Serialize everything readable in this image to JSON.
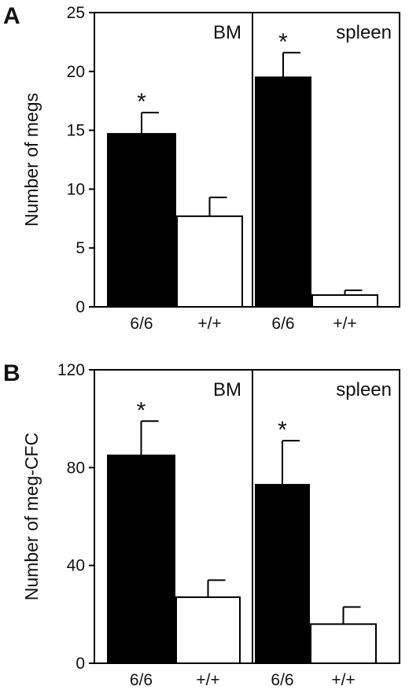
{
  "chart_data": [
    {
      "type": "bar",
      "panel": "A",
      "ylabel": "Number of megs",
      "ylim": [
        0,
        25
      ],
      "yticks": [
        0,
        5,
        10,
        15,
        20,
        25
      ],
      "groups": [
        {
          "name": "BM",
          "categories": [
            "6/6",
            "+/+"
          ],
          "values": [
            14.7,
            7.7
          ],
          "errors": [
            1.8,
            1.6
          ],
          "fills": [
            "#000000",
            "#ffffff"
          ],
          "significance": [
            "*",
            ""
          ]
        },
        {
          "name": "spleen",
          "categories": [
            "6/6",
            "+/+"
          ],
          "values": [
            19.5,
            1.0
          ],
          "errors": [
            2.1,
            0.4
          ],
          "fills": [
            "#000000",
            "#ffffff"
          ],
          "significance": [
            "*",
            ""
          ]
        }
      ]
    },
    {
      "type": "bar",
      "panel": "B",
      "ylabel": "Number of meg-CFC",
      "ylim": [
        0,
        120
      ],
      "yticks": [
        0,
        40,
        80,
        120
      ],
      "groups": [
        {
          "name": "BM",
          "categories": [
            "6/6",
            "+/+"
          ],
          "values": [
            85,
            27
          ],
          "errors": [
            14,
            7
          ],
          "fills": [
            "#000000",
            "#ffffff"
          ],
          "significance": [
            "*",
            ""
          ]
        },
        {
          "name": "spleen",
          "categories": [
            "6/6",
            "+/+"
          ],
          "values": [
            73,
            16
          ],
          "errors": [
            18,
            7
          ],
          "fills": [
            "#000000",
            "#ffffff"
          ],
          "significance": [
            "*",
            ""
          ]
        }
      ]
    }
  ]
}
